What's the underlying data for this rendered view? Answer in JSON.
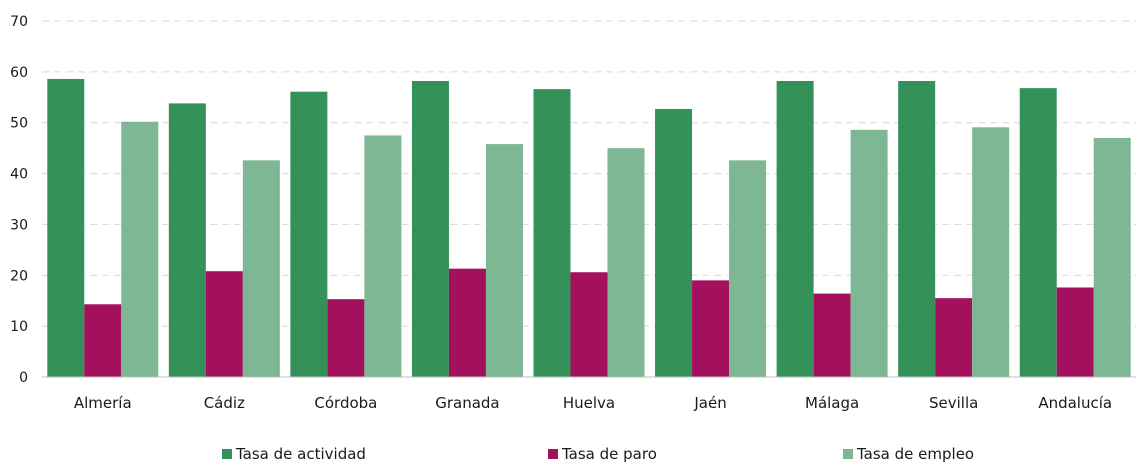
{
  "chart_data": {
    "type": "bar",
    "categories": [
      "Almería",
      "Cádiz",
      "Córdoba",
      "Granada",
      "Huelva",
      "Jaén",
      "Málaga",
      "Sevilla",
      "Andalucía"
    ],
    "series": [
      {
        "name": "Tasa de actividad",
        "color": "#339159",
        "values": [
          58.6,
          53.8,
          56.1,
          58.2,
          56.6,
          52.7,
          58.2,
          58.2,
          56.8
        ]
      },
      {
        "name": "Tasa de paro",
        "color": "#a3105e",
        "values": [
          14.3,
          20.8,
          15.3,
          21.3,
          20.6,
          19.0,
          16.4,
          15.5,
          17.6
        ]
      },
      {
        "name": "Tasa de empleo",
        "color": "#7eb794",
        "values": [
          50.2,
          42.6,
          47.5,
          45.8,
          45.0,
          42.6,
          48.6,
          49.1,
          47.0
        ]
      }
    ],
    "ylim": [
      0,
      70
    ],
    "yticks": [
      0,
      10,
      20,
      30,
      40,
      50,
      60,
      70
    ],
    "grid": true,
    "legend_position": "bottom",
    "title": "",
    "xlabel": "",
    "ylabel": ""
  }
}
